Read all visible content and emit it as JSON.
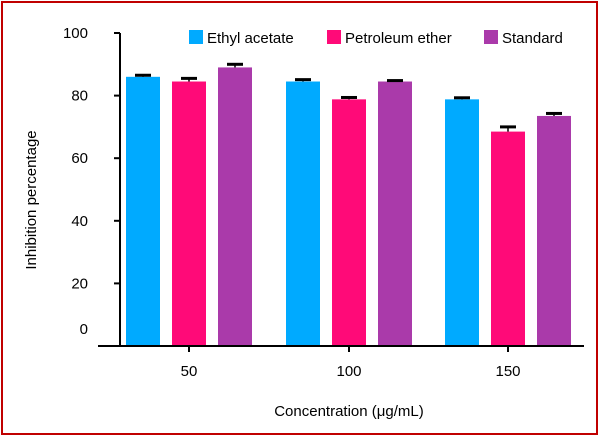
{
  "colors": {
    "frame": "#c00000",
    "axis": "#000000"
  },
  "chart_data": {
    "type": "bar",
    "title": "",
    "xlabel": "Concentration (μg/mL)",
    "ylabel": "Inhibition percentage",
    "ylim": [
      0,
      100
    ],
    "yticks": [
      0,
      20,
      40,
      60,
      80,
      100
    ],
    "categories": [
      "50",
      "100",
      "150"
    ],
    "legend_position": "top-right",
    "grid": false,
    "series": [
      {
        "name": "Ethyl acetate",
        "color": "#00aaff",
        "values": [
          86,
          84.5,
          78.8
        ],
        "errors": [
          0.5,
          0.6,
          0.5
        ]
      },
      {
        "name": "Petroleum ether",
        "color": "#ff0a78",
        "values": [
          84.5,
          78.8,
          68.5
        ],
        "errors": [
          1.0,
          0.6,
          1.5
        ]
      },
      {
        "name": "Standard",
        "color": "#aa3aaa",
        "values": [
          89,
          84.5,
          73.5
        ],
        "errors": [
          1.0,
          0.3,
          0.8
        ]
      }
    ]
  }
}
